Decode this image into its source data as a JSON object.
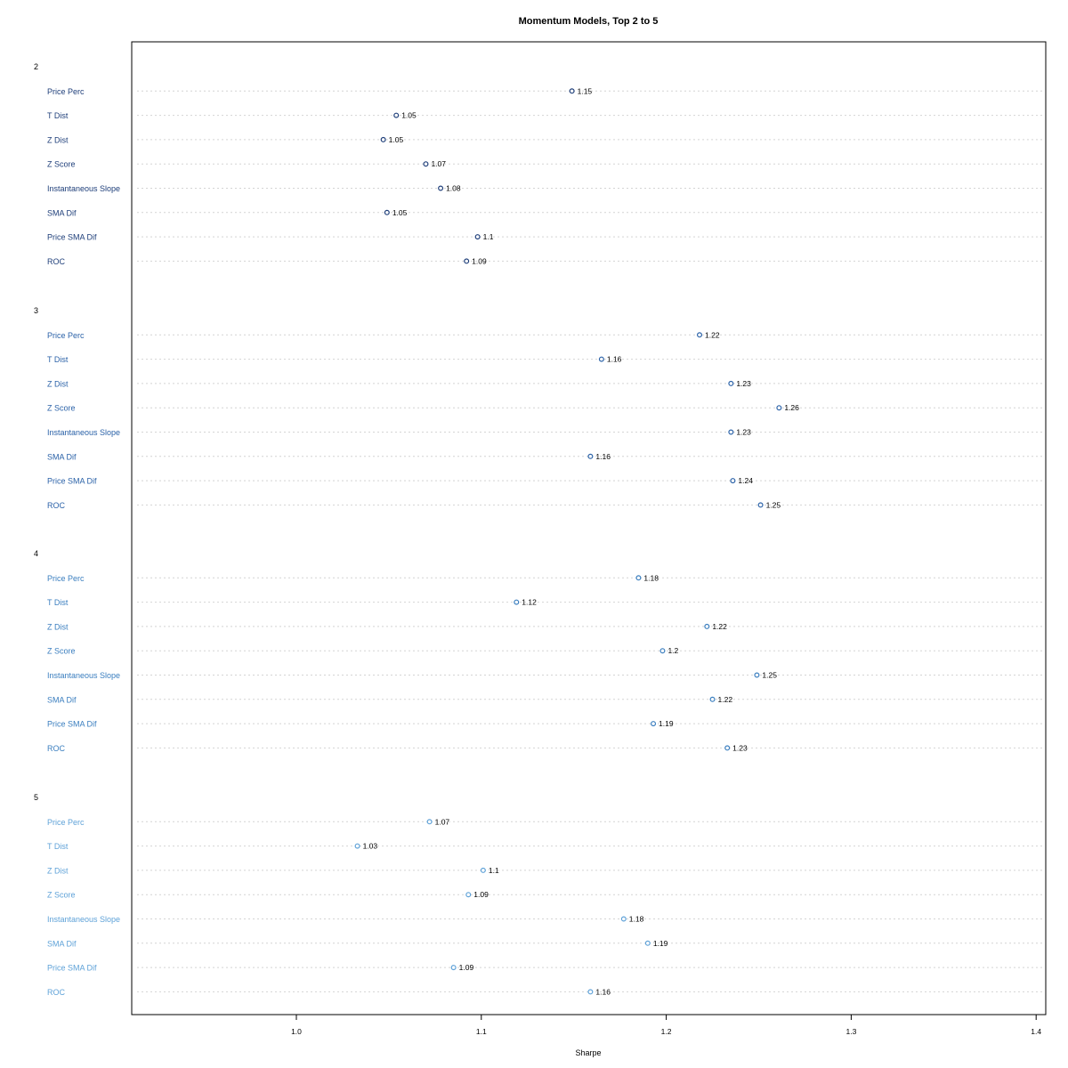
{
  "chart_data": {
    "type": "scatter",
    "title": "Momentum Models, Top 2 to 5",
    "xlabel": "Sharpe",
    "ylabel": "",
    "xlim": [
      0.91,
      1.405
    ],
    "xticks": [
      1.0,
      1.1,
      1.2,
      1.3,
      1.4
    ],
    "xtick_labels": [
      "1.0",
      "1.1",
      "1.2",
      "1.3",
      "1.4"
    ],
    "grid": true,
    "categories": [
      "Price Perc",
      "T Dist",
      "Z Dist",
      "Z Score",
      "Instantaneous Slope",
      "SMA Dif",
      "Price SMA Dif",
      "ROC"
    ],
    "groups": [
      {
        "name": "2",
        "color": "#1f3f7a",
        "values": [
          1.149,
          1.054,
          1.047,
          1.07,
          1.078,
          1.049,
          1.098,
          1.092
        ],
        "labels": [
          "1.15",
          "1.05",
          "1.05",
          "1.07",
          "1.08",
          "1.05",
          "1.1",
          "1.09"
        ]
      },
      {
        "name": "3",
        "color": "#2b62a8",
        "values": [
          1.218,
          1.165,
          1.235,
          1.261,
          1.235,
          1.159,
          1.236,
          1.251
        ],
        "labels": [
          "1.22",
          "1.16",
          "1.23",
          "1.26",
          "1.23",
          "1.16",
          "1.24",
          "1.25"
        ]
      },
      {
        "name": "4",
        "color": "#3a7ebf",
        "values": [
          1.185,
          1.119,
          1.222,
          1.198,
          1.249,
          1.225,
          1.193,
          1.233
        ],
        "labels": [
          "1.18",
          "1.12",
          "1.22",
          "1.2",
          "1.25",
          "1.22",
          "1.19",
          "1.23"
        ]
      },
      {
        "name": "5",
        "color": "#5fa2d8",
        "values": [
          1.072,
          1.033,
          1.101,
          1.093,
          1.177,
          1.19,
          1.085,
          1.159
        ],
        "labels": [
          "1.07",
          "1.03",
          "1.1",
          "1.09",
          "1.18",
          "1.19",
          "1.09",
          "1.16"
        ]
      }
    ]
  }
}
